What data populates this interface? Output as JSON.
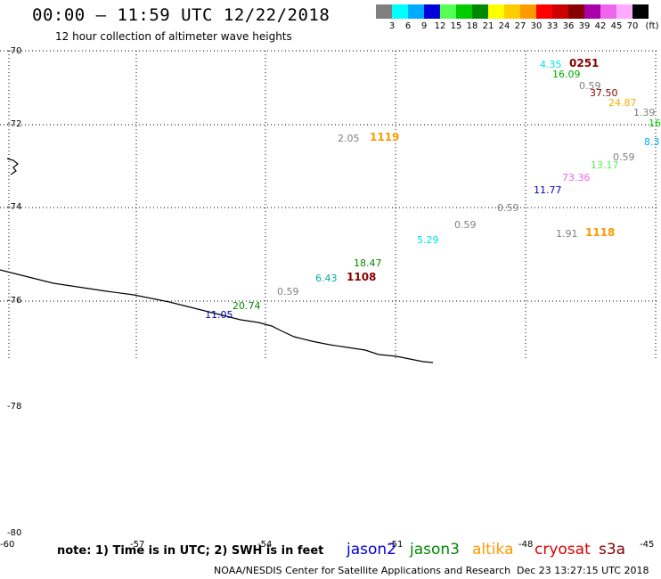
{
  "header": {
    "title": "00:00 – 11:59 UTC 12/22/2018",
    "subtitle": "12 hour collection of altimeter wave heights"
  },
  "legend": {
    "unit": "(ft)",
    "bins": [
      {
        "color": "#808080",
        "label": "3"
      },
      {
        "color": "#00ffff",
        "label": "6"
      },
      {
        "color": "#00aaff",
        "label": "9"
      },
      {
        "color": "#0000dd",
        "label": "12"
      },
      {
        "color": "#55ff55",
        "label": "15"
      },
      {
        "color": "#00cc00",
        "label": "18"
      },
      {
        "color": "#008800",
        "label": "21"
      },
      {
        "color": "#ffff00",
        "label": "24"
      },
      {
        "color": "#ffcc00",
        "label": "27"
      },
      {
        "color": "#ff9900",
        "label": "30"
      },
      {
        "color": "#ff0000",
        "label": "33"
      },
      {
        "color": "#cc0000",
        "label": "36"
      },
      {
        "color": "#880000",
        "label": "39"
      },
      {
        "color": "#aa00aa",
        "label": "42"
      },
      {
        "color": "#ee66ee",
        "label": "45"
      },
      {
        "color": "#ffaaff",
        "label": "70"
      },
      {
        "color": "#000000",
        "label": ""
      }
    ]
  },
  "latitudes": [
    "-70",
    "-72",
    "-74",
    "-76",
    "-78",
    "-80"
  ],
  "longitudes": [
    "-60",
    "-57",
    "-54",
    "-51",
    "-48",
    "-45"
  ],
  "observations": [
    {
      "text": "4.35",
      "color": "#00e5e5"
    },
    {
      "text": "0251",
      "color": "#880000",
      "kind": "time"
    },
    {
      "text": "16.09",
      "color": "#00aa00"
    },
    {
      "text": "0.59",
      "color": "#808080"
    },
    {
      "text": "37.50",
      "color": "#880000"
    },
    {
      "text": "24.87",
      "color": "#ffaa00"
    },
    {
      "text": "1.39",
      "color": "#808080"
    },
    {
      "text": "16",
      "color": "#00cc00"
    },
    {
      "text": "8.3",
      "color": "#00aaff"
    },
    {
      "text": "2.05",
      "color": "#808080"
    },
    {
      "text": "1119",
      "color": "#ff9900",
      "kind": "time"
    },
    {
      "text": "0.59",
      "color": "#808080"
    },
    {
      "text": "13.17",
      "color": "#55ee55"
    },
    {
      "text": "73.36",
      "color": "#ee66ee"
    },
    {
      "text": "11.77",
      "color": "#0000bb"
    },
    {
      "text": "0.59",
      "color": "#808080"
    },
    {
      "text": "0.59",
      "color": "#808080"
    },
    {
      "text": "1.91",
      "color": "#808080"
    },
    {
      "text": "1118",
      "color": "#ff9900",
      "kind": "time"
    },
    {
      "text": "5.29",
      "color": "#00e5e5"
    },
    {
      "text": "18.47",
      "color": "#008800"
    },
    {
      "text": "6.43",
      "color": "#00aaaa"
    },
    {
      "text": "1108",
      "color": "#880000",
      "kind": "time"
    },
    {
      "text": "0.59",
      "color": "#808080"
    },
    {
      "text": "20.74",
      "color": "#008800"
    },
    {
      "text": "11.05",
      "color": "#0000bb"
    }
  ],
  "footer": {
    "note": "note: 1) Time is in UTC; 2) SWH is in feet",
    "missions": [
      {
        "name": "jason2",
        "color": "#0000dd"
      },
      {
        "name": "jason3",
        "color": "#008800"
      },
      {
        "name": "altika",
        "color": "#ff9900"
      },
      {
        "name": "cryosat",
        "color": "#dd0000"
      },
      {
        "name": "s3a",
        "color": "#880000"
      }
    ],
    "credit": "NOAA/NESDIS Center for Satellite Applications and Research",
    "timestamp": "Dec 23 13:27:15 UTC 2018"
  }
}
